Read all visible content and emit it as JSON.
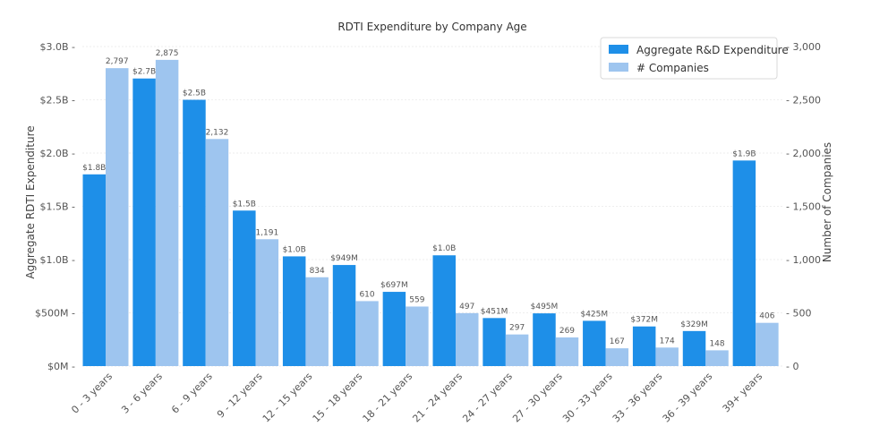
{
  "chart_data": {
    "type": "bar",
    "title": "RDTI Expenditure by Company Age",
    "categories": [
      "0 - 3 years",
      "3 - 6 years",
      "6 - 9 years",
      "9 - 12 years",
      "12 - 15 years",
      "15 - 18 years",
      "18 - 21 years",
      "21 - 24 years",
      "24 - 27 years",
      "27 - 30 years",
      "30 - 33 years",
      "33 - 36 years",
      "36 - 39 years",
      "39+ years"
    ],
    "left_axis": {
      "label": "Aggregate RDTI Expenditure",
      "ylim": [
        0,
        3000000000
      ],
      "ticks": [
        0,
        500000000,
        1000000000,
        1500000000,
        2000000000,
        2500000000,
        3000000000
      ],
      "tick_labels": [
        "$0M",
        "$500M",
        "$1.0B",
        "$1.5B",
        "$2.0B",
        "$2.5B",
        "$3.0B"
      ]
    },
    "right_axis": {
      "label": "Number of Companies",
      "ylim": [
        0,
        3000
      ],
      "ticks": [
        0,
        500,
        1000,
        1500,
        2000,
        2500,
        3000
      ],
      "tick_labels": [
        "0",
        "500",
        "1,000",
        "1,500",
        "2,000",
        "2,500",
        "3,000"
      ]
    },
    "series": [
      {
        "name": "Aggregate R&D Expenditure",
        "axis": "left",
        "color": "#1e8fe8",
        "values": [
          1800000000,
          2700000000,
          2500000000,
          1460000000,
          1030000000,
          949000000,
          697000000,
          1040000000,
          451000000,
          495000000,
          425000000,
          372000000,
          329000000,
          1930000000
        ],
        "labels": [
          "$1.8B",
          "$2.7B",
          "$2.5B",
          "$1.5B",
          "$1.0B",
          "$949M",
          "$697M",
          "$1.0B",
          "$451M",
          "$495M",
          "$425M",
          "$372M",
          "$329M",
          "$1.9B"
        ]
      },
      {
        "name": "# Companies",
        "axis": "right",
        "color": "#9ec5ef",
        "values": [
          2797,
          2875,
          2132,
          1191,
          834,
          610,
          559,
          497,
          297,
          269,
          167,
          174,
          148,
          406
        ],
        "labels": [
          "2,797",
          "2,875",
          "2,132",
          "1,191",
          "834",
          "610",
          "559",
          "497",
          "297",
          "269",
          "167",
          "174",
          "148",
          "406"
        ]
      }
    ],
    "grid": true,
    "legend": "top-right"
  }
}
